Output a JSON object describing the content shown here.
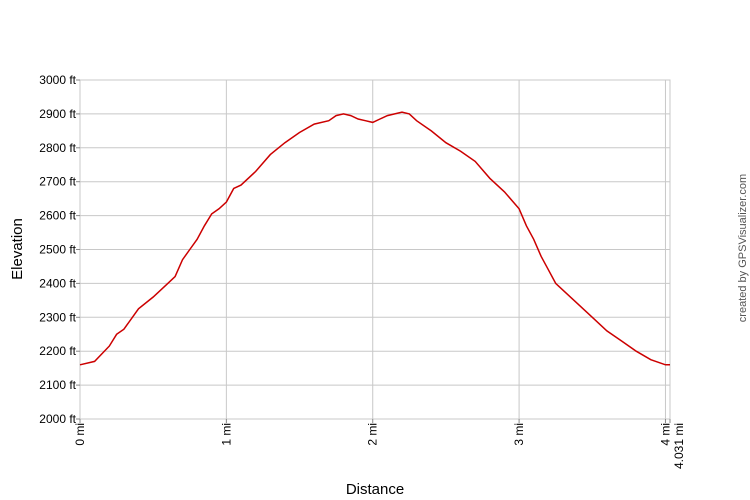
{
  "chart_data": {
    "type": "line",
    "xlabel": "Distance",
    "ylabel": "Elevation",
    "xlim": [
      0,
      4.031
    ],
    "ylim": [
      2000,
      3000
    ],
    "x_ticks": [
      {
        "value": 0,
        "label": "0 mi"
      },
      {
        "value": 1,
        "label": "1 mi"
      },
      {
        "value": 2,
        "label": "2 mi"
      },
      {
        "value": 3,
        "label": "3 mi"
      },
      {
        "value": 4,
        "label": "4 mi"
      },
      {
        "value": 4.031,
        "label": "4.031 mi"
      }
    ],
    "y_ticks": [
      {
        "value": 2000,
        "label": "2000 ft"
      },
      {
        "value": 2100,
        "label": "2100 ft"
      },
      {
        "value": 2200,
        "label": "2200 ft"
      },
      {
        "value": 2300,
        "label": "2300 ft"
      },
      {
        "value": 2400,
        "label": "2400 ft"
      },
      {
        "value": 2500,
        "label": "2500 ft"
      },
      {
        "value": 2600,
        "label": "2600 ft"
      },
      {
        "value": 2700,
        "label": "2700 ft"
      },
      {
        "value": 2800,
        "label": "2800 ft"
      },
      {
        "value": 2900,
        "label": "2900 ft"
      },
      {
        "value": 3000,
        "label": "3000 ft"
      }
    ],
    "grid": true,
    "line_color": "#cc0000",
    "series": [
      {
        "x": [
          0,
          0.1,
          0.2,
          0.25,
          0.3,
          0.4,
          0.5,
          0.6,
          0.65,
          0.7,
          0.75,
          0.8,
          0.85,
          0.9,
          0.95,
          1.0,
          1.05,
          1.1,
          1.2,
          1.3,
          1.4,
          1.5,
          1.6,
          1.7,
          1.75,
          1.8,
          1.85,
          1.9,
          1.95,
          2.0,
          2.05,
          2.1,
          2.15,
          2.2,
          2.25,
          2.3,
          2.4,
          2.5,
          2.6,
          2.7,
          2.8,
          2.9,
          3.0,
          3.05,
          3.1,
          3.15,
          3.2,
          3.25,
          3.3,
          3.4,
          3.5,
          3.6,
          3.7,
          3.8,
          3.9,
          4.0,
          4.031
        ],
        "y": [
          2160,
          2170,
          2215,
          2250,
          2265,
          2325,
          2360,
          2400,
          2420,
          2470,
          2500,
          2530,
          2570,
          2605,
          2620,
          2640,
          2680,
          2690,
          2730,
          2780,
          2815,
          2845,
          2870,
          2880,
          2895,
          2900,
          2895,
          2885,
          2880,
          2875,
          2885,
          2895,
          2900,
          2905,
          2900,
          2880,
          2850,
          2815,
          2790,
          2760,
          2710,
          2670,
          2620,
          2570,
          2530,
          2480,
          2440,
          2400,
          2380,
          2340,
          2300,
          2260,
          2230,
          2200,
          2175,
          2160,
          2160
        ]
      }
    ]
  },
  "credit": "created by GPSVisualizer.com"
}
